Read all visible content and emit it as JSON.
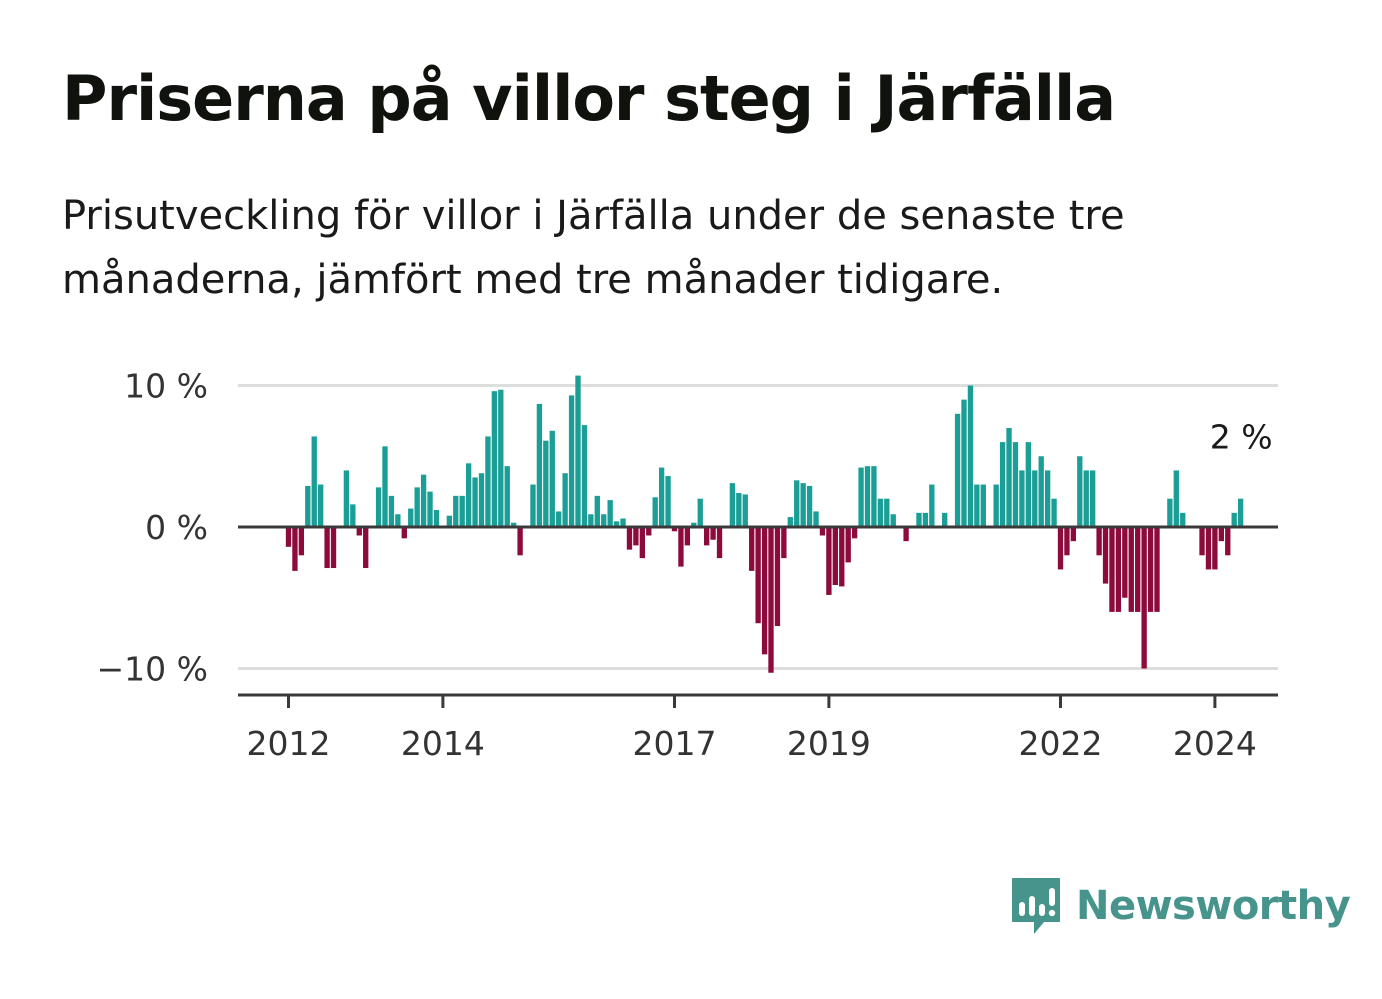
{
  "title": "Priserna på villor steg i Järfälla",
  "subtitle": "Prisutveckling för villor i Järfälla under de senaste tre månaderna, jämfört med tre månader tidigare.",
  "brand": {
    "name": "Newsworthy",
    "icon": "newsworthy-logo-icon"
  },
  "colors": {
    "positive": "#1a9e96",
    "negative": "#8c0a3c",
    "grid": "#dddddd",
    "axis": "#3a3a3a"
  },
  "chart_data": {
    "type": "bar",
    "title": "Priserna på villor steg i Järfälla",
    "ylabel": "",
    "xlabel": "",
    "ylim": [
      -11.8,
      10.5
    ],
    "yticks": [
      10,
      0,
      -10
    ],
    "ytick_labels": [
      "10 %",
      "0 %",
      "−10 %"
    ],
    "xlim": [
      2011.6,
      2024.8
    ],
    "xticks": [
      2012,
      2014,
      2017,
      2019,
      2022,
      2024
    ],
    "xtick_labels": [
      "2012",
      "2014",
      "2017",
      "2019",
      "2022",
      "2024"
    ],
    "grid": true,
    "x_start": 2012.0,
    "x_step_months": 1,
    "values": [
      -1.4,
      -3.1,
      -2.0,
      2.9,
      6.4,
      3.0,
      -2.9,
      -2.9,
      0.0,
      4.0,
      1.6,
      -0.6,
      -2.9,
      0.0,
      2.8,
      5.7,
      2.2,
      0.9,
      -0.8,
      1.3,
      2.8,
      3.7,
      2.5,
      1.2,
      0.0,
      0.8,
      2.2,
      2.2,
      4.5,
      3.5,
      3.8,
      6.4,
      9.6,
      9.7,
      4.3,
      0.3,
      -2.0,
      0.0,
      3.0,
      8.7,
      6.1,
      6.8,
      1.1,
      3.8,
      9.3,
      10.7,
      7.2,
      0.9,
      2.2,
      0.9,
      1.9,
      0.4,
      0.6,
      -1.6,
      -1.3,
      -2.2,
      -0.6,
      2.1,
      4.2,
      3.6,
      -0.3,
      -2.8,
      -1.3,
      0.3,
      2.0,
      -1.3,
      -0.9,
      -2.2,
      0.0,
      3.1,
      2.4,
      2.3,
      -3.1,
      -6.8,
      -9.0,
      -10.3,
      -7.0,
      -2.2,
      0.7,
      3.3,
      3.1,
      2.9,
      1.1,
      -0.6,
      -4.8,
      -4.1,
      -4.2,
      -2.5,
      -0.8,
      4.2,
      4.3,
      4.3,
      2.0,
      2.0,
      0.9,
      0.0,
      -1.0,
      0.0,
      1.0,
      1.0,
      3.0,
      0.0,
      1.0,
      0.0,
      8.0,
      9.0,
      10.0,
      3.0,
      3.0,
      0.0,
      3.0,
      6.0,
      7.0,
      6.0,
      4.0,
      6.0,
      4.0,
      5.0,
      4.0,
      2.0,
      -3.0,
      -2.0,
      -1.0,
      5.0,
      4.0,
      4.0,
      -2.0,
      -4.0,
      -6.0,
      -6.0,
      -5.0,
      -6.0,
      -6.0,
      -10.0,
      -6.0,
      -6.0,
      0.0,
      2.0,
      4.0,
      1.0,
      0.0,
      0.0,
      -2.0,
      -3.0,
      -3.0,
      -1.0,
      -2.0,
      1.0,
      2.0
    ],
    "annotation": {
      "text": "2 %",
      "value": 2
    }
  }
}
